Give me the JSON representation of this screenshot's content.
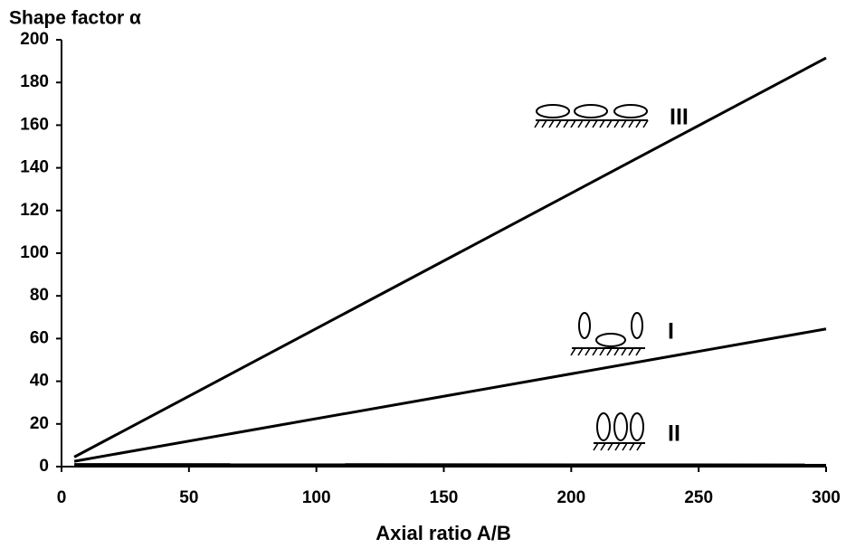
{
  "chart_data": {
    "type": "line",
    "title": "Shape factor α",
    "x_label": "Axial ratio  A/B",
    "x": [
      5,
      300
    ],
    "series": [
      {
        "name": "III",
        "color": "#000000",
        "values": [
          4.5,
          191.5
        ]
      },
      {
        "name": "I",
        "color": "#000000",
        "values": [
          2.5,
          64.5
        ]
      },
      {
        "name": "II",
        "color": "#000000",
        "values": [
          1,
          0.8
        ]
      }
    ],
    "xlim": [
      0,
      300
    ],
    "xticks": [
      0,
      50,
      100,
      150,
      200,
      250,
      300
    ],
    "ylim": [
      0,
      200
    ],
    "yticks": [
      0,
      20,
      40,
      60,
      80,
      100,
      120,
      140,
      160,
      180,
      200
    ],
    "grid": false
  }
}
